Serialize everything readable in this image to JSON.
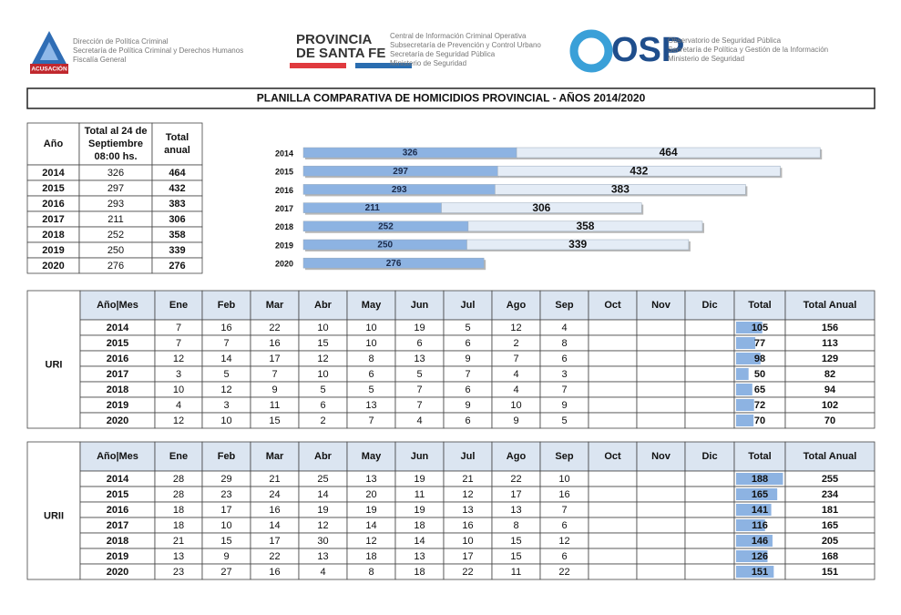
{
  "header": {
    "left": {
      "badge": "ACUSACIÓN",
      "lines": [
        "Dirección de Política Criminal",
        "Secretaría de Política Criminal y Derechos Humanos",
        "Fiscalía General"
      ]
    },
    "center": {
      "brand": [
        "PROVINCIA",
        "DE SANTA FE"
      ],
      "lines": [
        "Central de Información Criminal Operativa",
        "Subsecretaría de Prevención y Control Urbano",
        "Secretaría de Seguridad Pública",
        "Ministerio de Seguridad"
      ]
    },
    "right": {
      "brand": "OSP",
      "lines": [
        "Observatorio de Seguridad Pública",
        "Secretaría de Política y Gestión de la Información",
        "Ministerio de Seguridad"
      ]
    }
  },
  "title": "PLANILLA COMPARATIVA DE HOMICIDIOS PROVINCIAL - AÑOS 2014/2020",
  "summary_table": {
    "columns": [
      [
        "Año"
      ],
      [
        "Total al 24 de",
        "Septiembre",
        "08:00 hs."
      ],
      [
        "Total",
        "anual"
      ]
    ],
    "rows": [
      [
        "2014",
        326,
        464
      ],
      [
        "2015",
        297,
        432
      ],
      [
        "2016",
        293,
        383
      ],
      [
        "2017",
        211,
        306
      ],
      [
        "2018",
        252,
        358
      ],
      [
        "2019",
        250,
        339
      ],
      [
        "2020",
        276,
        276
      ]
    ]
  },
  "chart_data": {
    "type": "bar",
    "orientation": "horizontal",
    "stacked": true,
    "categories": [
      "2014",
      "2015",
      "2016",
      "2017",
      "2018",
      "2019",
      "2020"
    ],
    "series": [
      {
        "color": "#8db3e2",
        "values": [
          326,
          297,
          293,
          211,
          252,
          250,
          276
        ]
      },
      {
        "color": "#e4ecf6",
        "values": [
          464,
          432,
          383,
          306,
          358,
          339,
          null
        ]
      }
    ]
  },
  "tables": [
    {
      "region": "URI",
      "columns": [
        "Año|Mes",
        "Ene",
        "Feb",
        "Mar",
        "Abr",
        "May",
        "Jun",
        "Jul",
        "Ago",
        "Sep",
        "Oct",
        "Nov",
        "Dic",
        "Total",
        "Total Anual"
      ],
      "total_bar_color": "#8db3e2",
      "rows": [
        {
          "year": "2014",
          "months": [
            7,
            16,
            22,
            10,
            10,
            19,
            5,
            12,
            4
          ],
          "total": 105,
          "total_anual": 156
        },
        {
          "year": "2015",
          "months": [
            7,
            7,
            16,
            15,
            10,
            6,
            6,
            2,
            8
          ],
          "total": 77,
          "total_anual": 113
        },
        {
          "year": "2016",
          "months": [
            12,
            14,
            17,
            12,
            8,
            13,
            9,
            7,
            6
          ],
          "total": 98,
          "total_anual": 129
        },
        {
          "year": "2017",
          "months": [
            3,
            5,
            7,
            10,
            6,
            5,
            7,
            4,
            3
          ],
          "total": 50,
          "total_anual": 82
        },
        {
          "year": "2018",
          "months": [
            10,
            12,
            9,
            5,
            5,
            7,
            6,
            4,
            7
          ],
          "total": 65,
          "total_anual": 94
        },
        {
          "year": "2019",
          "months": [
            4,
            3,
            11,
            6,
            13,
            7,
            9,
            10,
            9
          ],
          "total": 72,
          "total_anual": 102
        },
        {
          "year": "2020",
          "months": [
            12,
            10,
            15,
            2,
            7,
            4,
            6,
            9,
            5
          ],
          "total": 70,
          "total_anual": 70
        }
      ]
    },
    {
      "region": "URII",
      "columns": [
        "Año|Mes",
        "Ene",
        "Feb",
        "Mar",
        "Abr",
        "May",
        "Jun",
        "Jul",
        "Ago",
        "Sep",
        "Oct",
        "Nov",
        "Dic",
        "Total",
        "Total Anual"
      ],
      "total_bar_color": "#8db3e2",
      "rows": [
        {
          "year": "2014",
          "months": [
            28,
            29,
            21,
            25,
            13,
            19,
            21,
            22,
            10
          ],
          "total": 188,
          "total_anual": 255
        },
        {
          "year": "2015",
          "months": [
            28,
            23,
            24,
            14,
            20,
            11,
            12,
            17,
            16
          ],
          "total": 165,
          "total_anual": 234
        },
        {
          "year": "2016",
          "months": [
            18,
            17,
            16,
            19,
            19,
            19,
            13,
            13,
            7
          ],
          "total": 141,
          "total_anual": 181
        },
        {
          "year": "2017",
          "months": [
            18,
            10,
            14,
            12,
            14,
            18,
            16,
            8,
            6
          ],
          "total": 116,
          "total_anual": 165
        },
        {
          "year": "2018",
          "months": [
            21,
            15,
            17,
            30,
            12,
            14,
            10,
            15,
            12
          ],
          "total": 146,
          "total_anual": 205
        },
        {
          "year": "2019",
          "months": [
            13,
            9,
            22,
            13,
            18,
            13,
            17,
            15,
            6
          ],
          "total": 126,
          "total_anual": 168
        },
        {
          "year": "2020",
          "months": [
            23,
            27,
            16,
            4,
            8,
            18,
            22,
            11,
            22
          ],
          "total": 151,
          "total_anual": 151
        }
      ]
    }
  ]
}
